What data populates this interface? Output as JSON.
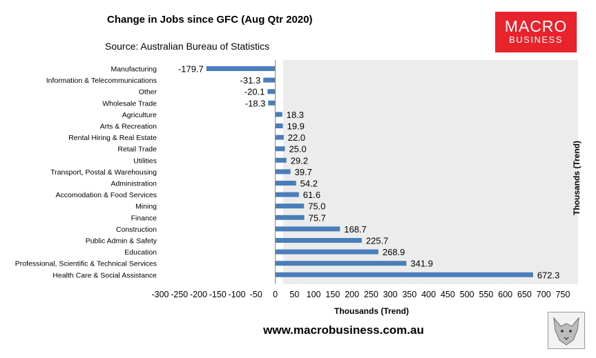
{
  "header": {
    "title": "Change in Jobs since GFC (Aug Qtr 2020)",
    "source": "Source: Australian Bureau of Statistics"
  },
  "logo": {
    "line1": "MACRO",
    "line2": "BUSINESS",
    "color": "#e8232b"
  },
  "footer": {
    "url": "www.macrobusiness.com.au",
    "badge_icon": "wolf-icon"
  },
  "chart_data": {
    "type": "bar",
    "orientation": "horizontal",
    "categories": [
      "Manufacturing",
      "Information & Telecommunications",
      "Other",
      "Wholesale Trade",
      "Agriculture",
      "Arts & Recreation",
      "Rental Hiring & Real Estate",
      "Retail Trade",
      "Utilities",
      "Transport, Postal & Warehousing",
      "Administration",
      "Accomodation & Food Services",
      "Mining",
      "Finance",
      "Construction",
      "Public Admin & Safety",
      "Education",
      "Professional, Scientific & Technical Services",
      "Health Care & Social Assistance"
    ],
    "values": [
      -179.7,
      -31.3,
      -20.1,
      -18.3,
      18.3,
      19.9,
      22.0,
      25.0,
      29.2,
      39.7,
      54.2,
      61.6,
      75.0,
      75.7,
      168.7,
      225.7,
      268.9,
      341.9,
      672.3
    ],
    "value_labels": [
      "-179.7",
      "-31.3",
      "-20.1",
      "-18.3",
      "18.3",
      "19.9",
      "22.0",
      "25.0",
      "29.2",
      "39.7",
      "54.2",
      "61.6",
      "75.0",
      "75.7",
      "168.7",
      "225.7",
      "268.9",
      "341.9",
      "672.3"
    ],
    "xlabel": "Thousands (Trend)",
    "ylabel": "Thousands (Trend)",
    "xlim": [
      -300,
      750
    ],
    "xticks": [
      "-300",
      "-250",
      "-200",
      "-150",
      "-100",
      "-50",
      "0",
      "50",
      "100",
      "150",
      "200",
      "250",
      "300",
      "350",
      "400",
      "450",
      "500",
      "550",
      "600",
      "650",
      "700",
      "750"
    ],
    "grid": false,
    "bar_color": "#4a7ebb",
    "plot_background": "#ececec"
  }
}
